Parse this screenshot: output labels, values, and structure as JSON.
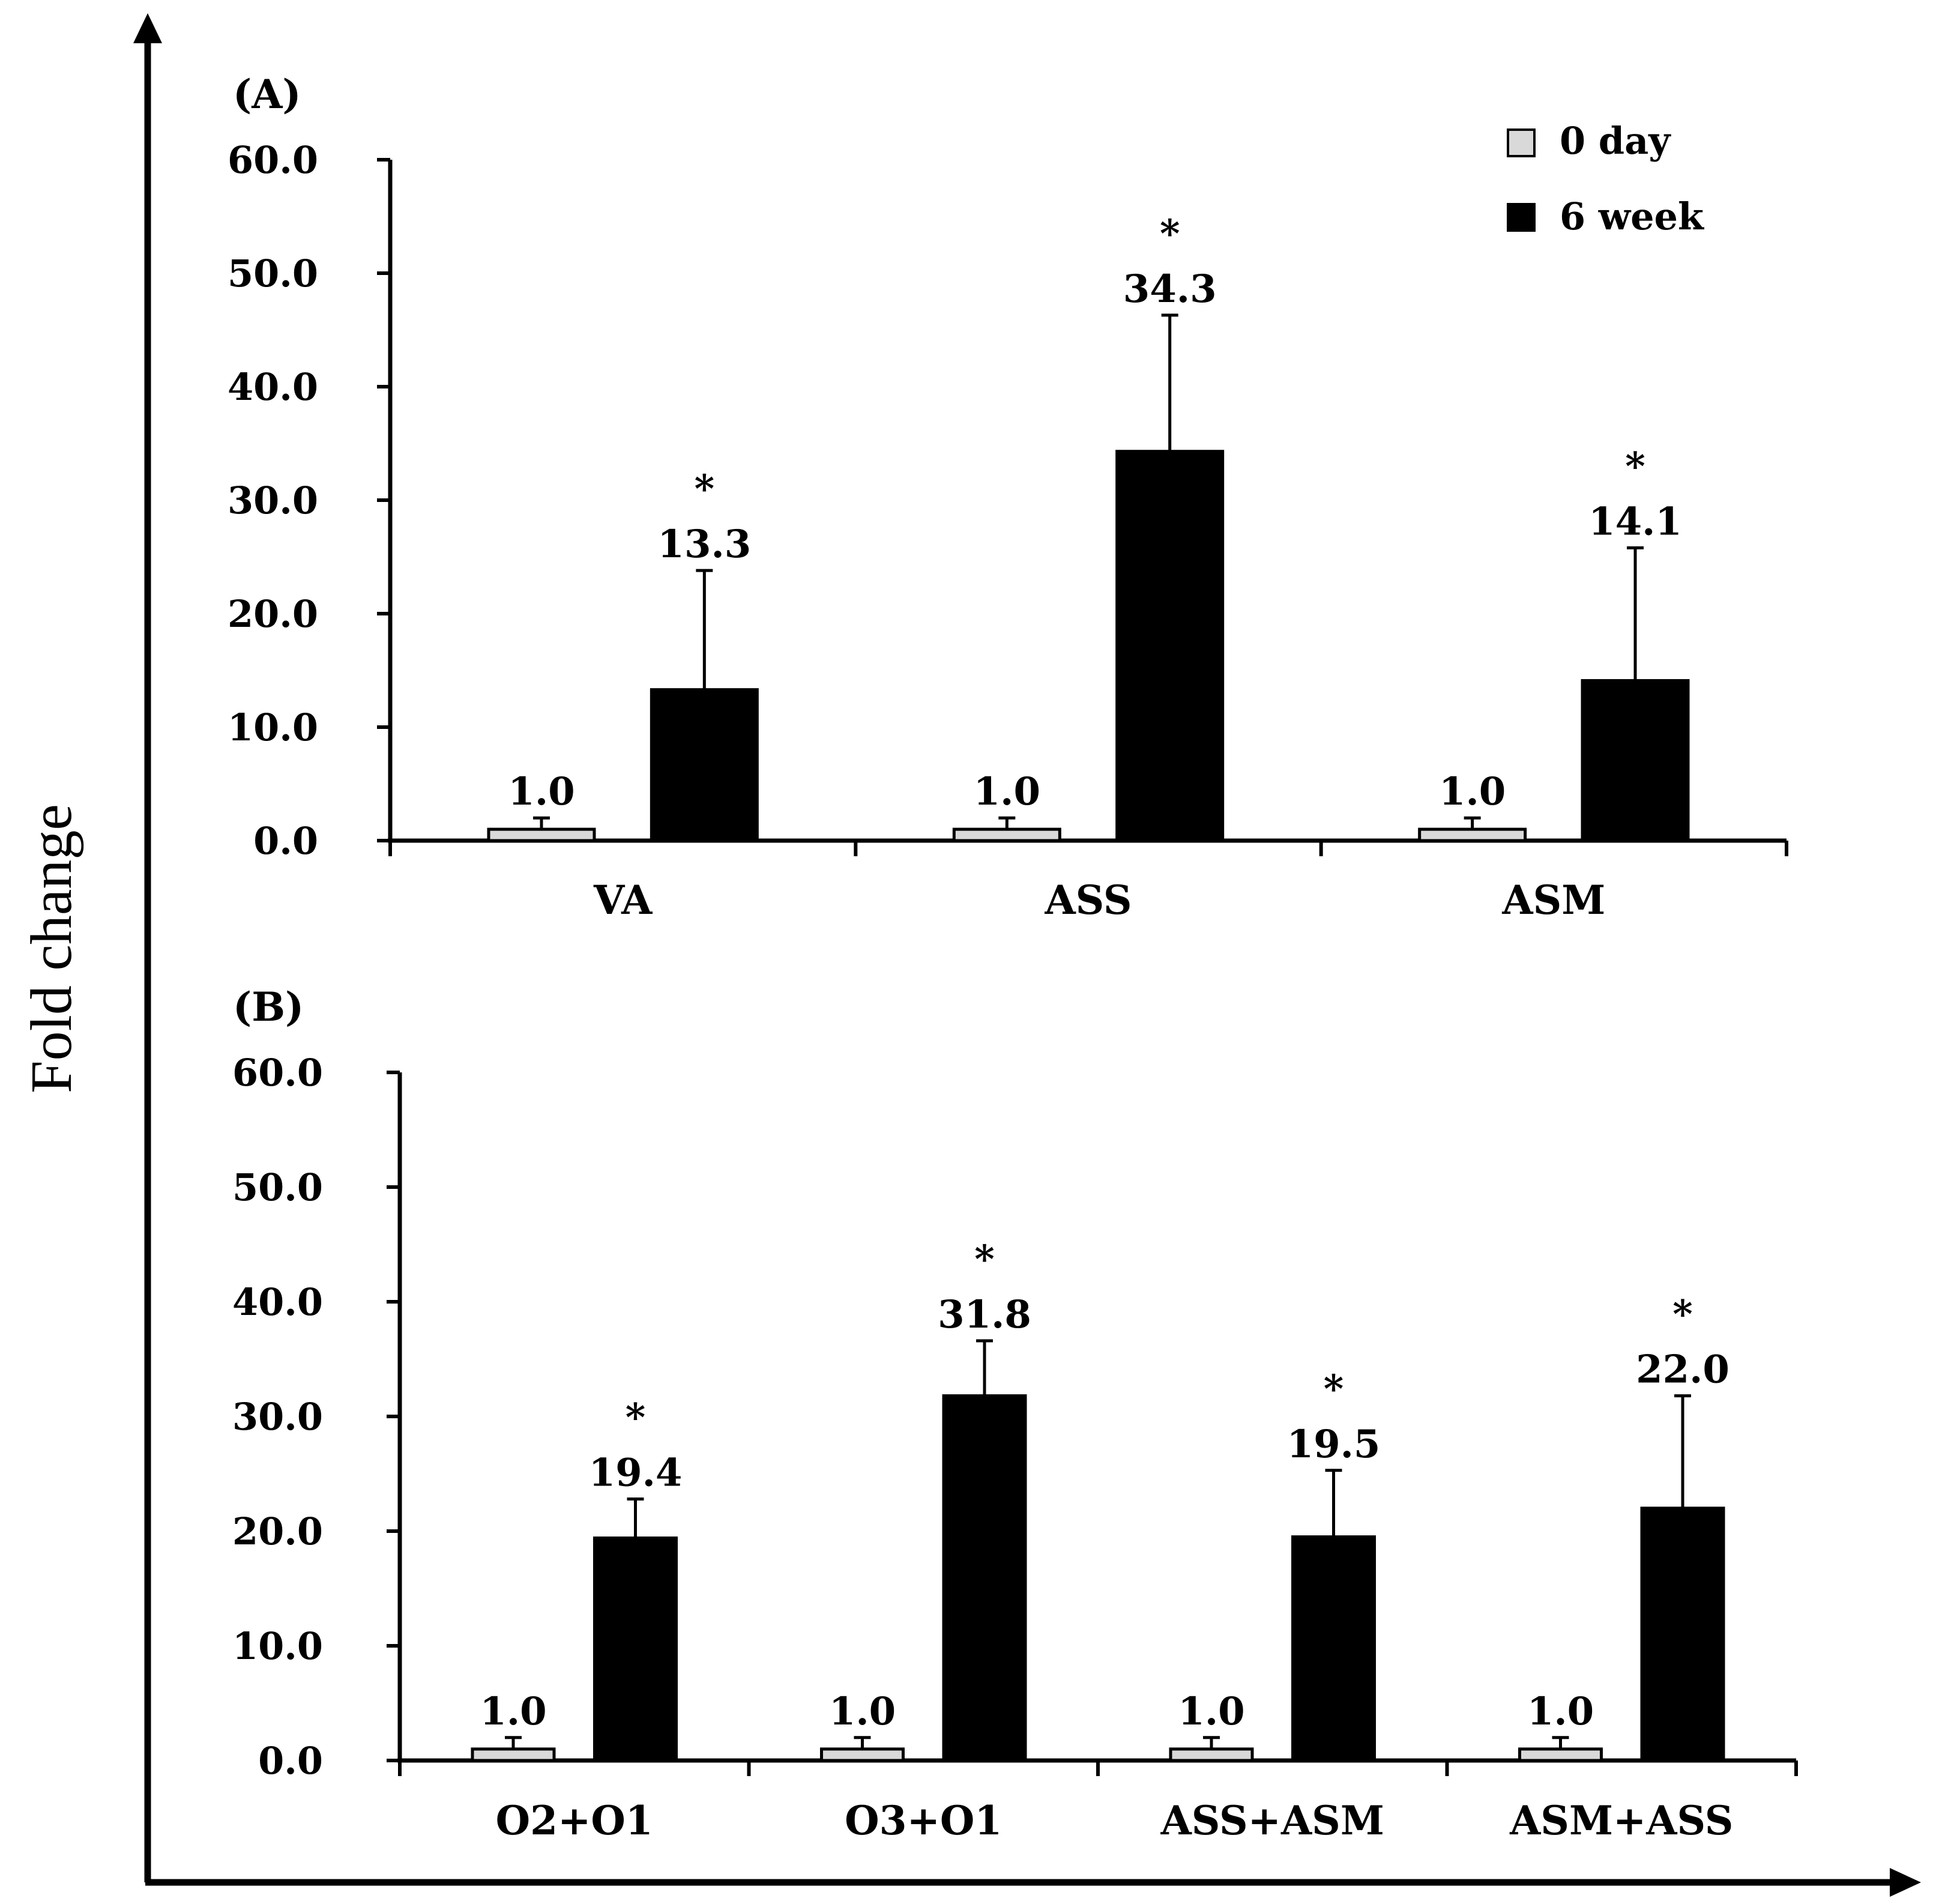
{
  "figure": {
    "y_axis_label": "Fold change"
  },
  "legend": {
    "items": [
      {
        "label": "0 day",
        "color": "#d9d9d9"
      },
      {
        "label": "6 week",
        "color": "#000000"
      }
    ]
  },
  "chart_data": [
    {
      "type": "bar",
      "title": "(A)",
      "ylabel": "Fold change",
      "ylim": [
        0,
        60
      ],
      "yticks": [
        "0.0",
        "10.0",
        "20.0",
        "30.0",
        "40.0",
        "50.0",
        "60.0"
      ],
      "categories": [
        "VA",
        "ASS",
        "ASM"
      ],
      "series": [
        {
          "name": "0 day",
          "color": "#d9d9d9",
          "values": [
            1.0,
            1.0,
            1.0
          ],
          "errors": [
            1.0,
            1.0,
            1.0
          ],
          "labels": [
            "1.0",
            "1.0",
            "1.0"
          ],
          "significant": [
            false,
            false,
            false
          ]
        },
        {
          "name": "6 week",
          "color": "#000000",
          "values": [
            13.3,
            34.3,
            14.1
          ],
          "errors": [
            10.5,
            12.0,
            11.7
          ],
          "labels": [
            "13.3",
            "34.3",
            "14.1"
          ],
          "significant": [
            true,
            true,
            true
          ]
        }
      ],
      "significance_marker": "*"
    },
    {
      "type": "bar",
      "title": "(B)",
      "ylabel": "Fold change",
      "ylim": [
        0,
        60
      ],
      "yticks": [
        "0.0",
        "10.0",
        "20.0",
        "30.0",
        "40.0",
        "50.0",
        "60.0"
      ],
      "categories": [
        "O2+O1",
        "O3+O1",
        "ASS+ASM",
        "ASM+ASS"
      ],
      "series": [
        {
          "name": "0 day",
          "color": "#d9d9d9",
          "values": [
            1.0,
            1.0,
            1.0,
            1.0
          ],
          "errors": [
            1.0,
            1.0,
            1.0,
            1.0
          ],
          "labels": [
            "1.0",
            "1.0",
            "1.0",
            "1.0"
          ],
          "significant": [
            false,
            false,
            false,
            false
          ]
        },
        {
          "name": "6 week",
          "color": "#000000",
          "values": [
            19.4,
            31.8,
            19.5,
            22.0
          ],
          "errors": [
            3.4,
            4.8,
            5.8,
            9.8
          ],
          "labels": [
            "19.4",
            "31.8",
            "19.5",
            "22.0"
          ],
          "significant": [
            true,
            true,
            true,
            true
          ]
        }
      ],
      "significance_marker": "*"
    }
  ]
}
